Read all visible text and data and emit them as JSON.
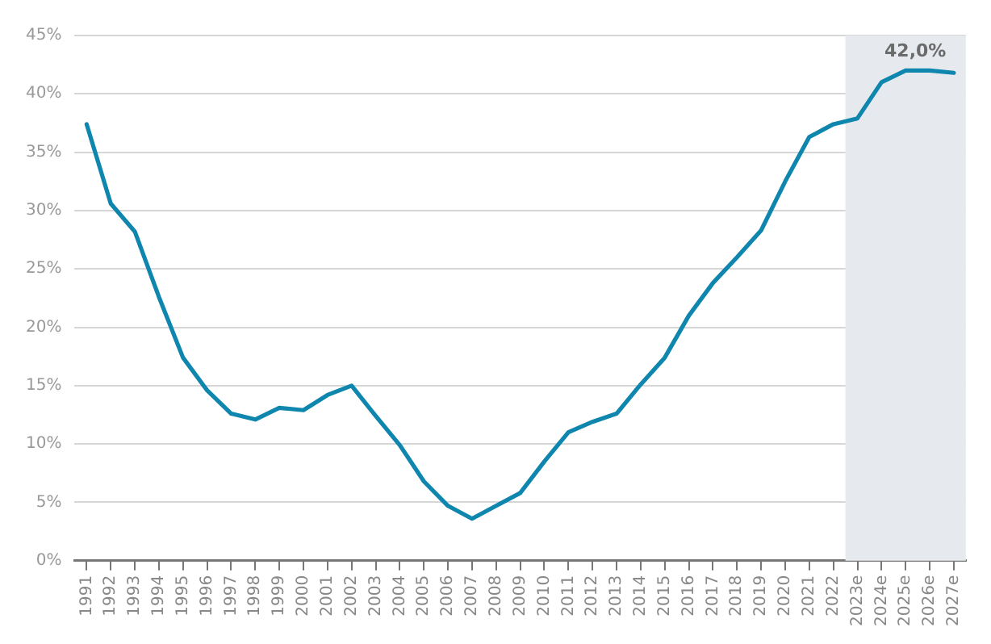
{
  "chart_data": {
    "type": "line",
    "categories": [
      "1991",
      "1992",
      "1993",
      "1994",
      "1995",
      "1996",
      "1997",
      "1998",
      "1999",
      "2000",
      "2001",
      "2002",
      "2003",
      "2004",
      "2005",
      "2006",
      "2007",
      "2008",
      "2009",
      "2010",
      "2011",
      "2012",
      "2013",
      "2014",
      "2015",
      "2016",
      "2017",
      "2018",
      "2019",
      "2020",
      "2021",
      "2022",
      "2023e",
      "2024e",
      "2025e",
      "2026e",
      "2027e"
    ],
    "series": [
      {
        "color": "#0e86ad",
        "values": [
          37.4,
          30.6,
          28.2,
          22.6,
          17.4,
          14.6,
          12.6,
          12.1,
          13.1,
          12.9,
          14.2,
          15.0,
          12.4,
          9.9,
          6.8,
          4.7,
          3.6,
          4.7,
          5.8,
          8.5,
          11.0,
          11.9,
          12.6,
          15.1,
          17.4,
          21.0,
          23.8,
          26.0,
          28.3,
          32.5,
          36.3,
          37.4,
          37.9,
          41.0,
          42.0,
          42.0,
          41.8
        ]
      }
    ],
    "ylim": [
      0,
      45
    ],
    "yticks": [
      {
        "value": 0,
        "label": "0%"
      },
      {
        "value": 5,
        "label": "5%"
      },
      {
        "value": 10,
        "label": "10%"
      },
      {
        "value": 15,
        "label": "15%"
      },
      {
        "value": 20,
        "label": "20%"
      },
      {
        "value": 25,
        "label": "25%"
      },
      {
        "value": 30,
        "label": "30%"
      },
      {
        "value": 35,
        "label": "35%"
      },
      {
        "value": 40,
        "label": "40%"
      },
      {
        "value": 45,
        "label": "45%"
      }
    ],
    "grid": "y",
    "legend": false,
    "marker": "none",
    "line_style": "solid",
    "bands": [
      {
        "axis": "x",
        "from": "2023e",
        "to": "2027e",
        "color": "#e6e9ed"
      }
    ],
    "annotations": [
      {
        "text": "42,0%",
        "x": "2025e",
        "y": 42.0
      }
    ]
  }
}
